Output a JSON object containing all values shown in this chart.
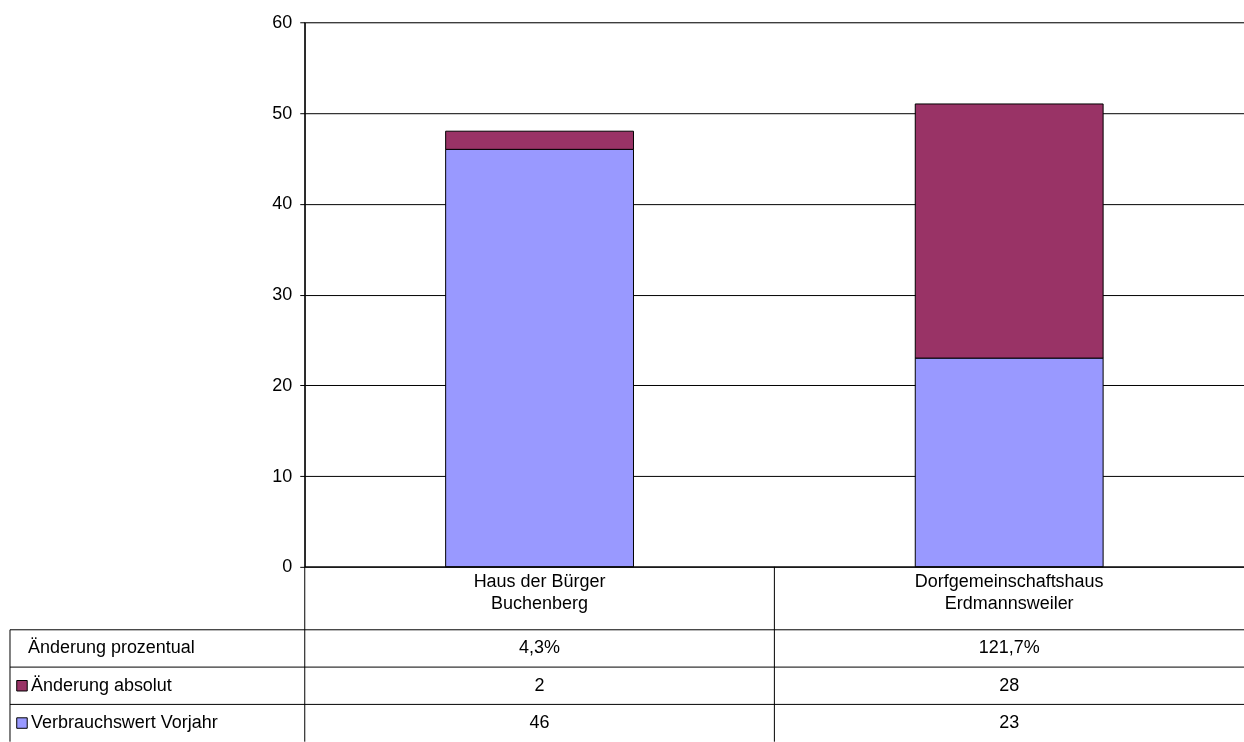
{
  "chart_data": {
    "type": "bar",
    "stacked": true,
    "categories": [
      "Haus der Bürger\nBuchenberg",
      "Dorfgemeinschaftshaus\nErdmannsweiler"
    ],
    "series": [
      {
        "name": "Verbrauchswert Vorjahr",
        "color": "#9999ff",
        "values": [
          46,
          23
        ]
      },
      {
        "name": "Änderung absolut",
        "color": "#993366",
        "values": [
          2,
          28
        ]
      }
    ],
    "annotations": [
      "Änderung prozentual",
      "4,3%",
      "121,7%"
    ],
    "ylim": [
      0,
      60
    ],
    "yticks": [
      0,
      10,
      20,
      30,
      40,
      50,
      60
    ],
    "grid": "y",
    "data_labels": true,
    "legend": "bottom"
  }
}
